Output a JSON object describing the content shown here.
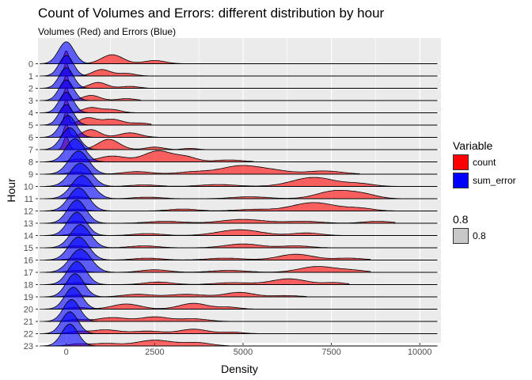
{
  "chart_data": {
    "type": "ridgeline",
    "title": "Count of Volumes and Errors: different distribution by hour",
    "subtitle": "Volumes (Red) and Errors (Blue)",
    "xlabel": "Density",
    "ylabel": "Hour",
    "xlim": [
      -800,
      10600
    ],
    "x_ticks": [
      0,
      2500,
      5000,
      7500,
      10000
    ],
    "x_tick_labels": [
      "0",
      "2500",
      "5000",
      "7500",
      "10000"
    ],
    "categories": [
      "0",
      "1",
      "2",
      "3",
      "4",
      "5",
      "6",
      "7",
      "8",
      "9",
      "10",
      "11",
      "12",
      "13",
      "14",
      "15",
      "16",
      "17",
      "18",
      "19",
      "20",
      "21",
      "22",
      "23"
    ],
    "colors": {
      "count": "#ff0000",
      "sum_error": "#0000ff",
      "background": "#ebebeb",
      "grid": "#ffffff"
    },
    "alpha": 0.6,
    "series": [
      {
        "name": "count",
        "color": "#ff0000",
        "ridges": [
          {
            "hour": "0",
            "peaks": [
              [
                0,
                70,
                1.0
              ],
              [
                1300,
                300,
                0.7
              ],
              [
                2500,
                300,
                0.25
              ]
            ],
            "end": 3400
          },
          {
            "hour": "1",
            "peaks": [
              [
                0,
                70,
                1.0
              ],
              [
                1000,
                250,
                0.5
              ],
              [
                1700,
                250,
                0.2
              ]
            ],
            "end": 2400
          },
          {
            "hour": "2",
            "peaks": [
              [
                0,
                70,
                1.0
              ],
              [
                900,
                250,
                0.45
              ],
              [
                1800,
                250,
                0.15
              ]
            ],
            "end": 2300
          },
          {
            "hour": "3",
            "peaks": [
              [
                0,
                70,
                1.0
              ],
              [
                700,
                250,
                0.4
              ],
              [
                1700,
                250,
                0.15
              ]
            ],
            "end": 2100
          },
          {
            "hour": "4",
            "peaks": [
              [
                0,
                70,
                1.0
              ],
              [
                700,
                250,
                0.4
              ],
              [
                1300,
                250,
                0.25
              ]
            ],
            "end": 2100
          },
          {
            "hour": "5",
            "peaks": [
              [
                0,
                70,
                1.0
              ],
              [
                600,
                250,
                0.55
              ],
              [
                1300,
                300,
                0.45
              ],
              [
                2100,
                250,
                0.15
              ]
            ],
            "end": 2400
          },
          {
            "hour": "6",
            "peaks": [
              [
                0,
                70,
                1.0
              ],
              [
                700,
                250,
                0.6
              ],
              [
                1800,
                300,
                0.35
              ]
            ],
            "end": 2600
          },
          {
            "hour": "7",
            "peaks": [
              [
                0,
                80,
                1.0
              ],
              [
                1200,
                300,
                0.8
              ],
              [
                2500,
                250,
                0.2
              ],
              [
                3500,
                200,
                0.1
              ]
            ],
            "end": 4000
          },
          {
            "hour": "8",
            "peaks": [
              [
                300,
                200,
                0.2
              ],
              [
                1300,
                400,
                0.45
              ],
              [
                2600,
                400,
                0.85
              ],
              [
                3400,
                300,
                0.35
              ],
              [
                4600,
                400,
                0.15
              ]
            ],
            "end": 5300
          },
          {
            "hour": "9",
            "peaks": [
              [
                300,
                250,
                0.15
              ],
              [
                2000,
                400,
                0.2
              ],
              [
                3700,
                500,
                0.2
              ],
              [
                4900,
                500,
                0.6
              ],
              [
                5800,
                500,
                0.3
              ],
              [
                7300,
                500,
                0.25
              ]
            ],
            "end": 8300
          },
          {
            "hour": "10",
            "peaks": [
              [
                300,
                250,
                0.15
              ],
              [
                2200,
                400,
                0.12
              ],
              [
                4300,
                500,
                0.15
              ],
              [
                7000,
                600,
                0.7
              ],
              [
                8300,
                400,
                0.2
              ]
            ],
            "end": 9600
          },
          {
            "hour": "11",
            "peaks": [
              [
                300,
                250,
                0.15
              ],
              [
                2300,
                400,
                0.12
              ],
              [
                5200,
                500,
                0.15
              ],
              [
                7600,
                500,
                0.6
              ],
              [
                8400,
                400,
                0.3
              ]
            ],
            "end": 10200
          },
          {
            "hour": "12",
            "peaks": [
              [
                300,
                250,
                0.15
              ],
              [
                3300,
                400,
                0.15
              ],
              [
                5300,
                500,
                0.12
              ],
              [
                7000,
                600,
                0.65
              ],
              [
                8300,
                400,
                0.2
              ]
            ],
            "end": 9900
          },
          {
            "hour": "13",
            "peaks": [
              [
                300,
                250,
                0.15
              ],
              [
                2800,
                500,
                0.15
              ],
              [
                5000,
                600,
                0.3
              ],
              [
                6700,
                500,
                0.15
              ],
              [
                8800,
                400,
                0.15
              ]
            ],
            "end": 9300
          },
          {
            "hour": "14",
            "peaks": [
              [
                300,
                250,
                0.15
              ],
              [
                2300,
                400,
                0.15
              ],
              [
                4900,
                600,
                0.45
              ],
              [
                6800,
                400,
                0.2
              ]
            ],
            "end": 8300
          },
          {
            "hour": "15",
            "peaks": [
              [
                300,
                250,
                0.15
              ],
              [
                2200,
                400,
                0.15
              ],
              [
                5000,
                500,
                0.3
              ],
              [
                6500,
                400,
                0.15
              ]
            ],
            "end": 7500
          },
          {
            "hour": "16",
            "peaks": [
              [
                300,
                250,
                0.15
              ],
              [
                2300,
                400,
                0.15
              ],
              [
                4500,
                500,
                0.15
              ],
              [
                6500,
                500,
                0.45
              ],
              [
                8000,
                400,
                0.15
              ]
            ],
            "end": 8600
          },
          {
            "hour": "17",
            "peaks": [
              [
                300,
                250,
                0.15
              ],
              [
                2500,
                400,
                0.2
              ],
              [
                4600,
                500,
                0.15
              ],
              [
                7100,
                500,
                0.45
              ],
              [
                8100,
                400,
                0.15
              ]
            ],
            "end": 8600
          },
          {
            "hour": "18",
            "peaks": [
              [
                300,
                250,
                0.15
              ],
              [
                2600,
                400,
                0.2
              ],
              [
                4700,
                500,
                0.15
              ],
              [
                6300,
                500,
                0.45
              ],
              [
                7600,
                300,
                0.15
              ]
            ],
            "end": 8000
          },
          {
            "hour": "19",
            "peaks": [
              [
                300,
                250,
                0.15
              ],
              [
                2000,
                400,
                0.2
              ],
              [
                3400,
                500,
                0.2
              ],
              [
                4900,
                400,
                0.35
              ],
              [
                6200,
                400,
                0.1
              ]
            ],
            "end": 6800
          },
          {
            "hour": "20",
            "peaks": [
              [
                300,
                250,
                0.15
              ],
              [
                1700,
                400,
                0.4
              ],
              [
                3600,
                400,
                0.45
              ],
              [
                4600,
                300,
                0.15
              ]
            ],
            "end": 5300
          },
          {
            "hour": "21",
            "peaks": [
              [
                300,
                250,
                0.15
              ],
              [
                1300,
                400,
                0.3
              ],
              [
                2500,
                400,
                0.35
              ],
              [
                3600,
                400,
                0.2
              ]
            ],
            "end": 4800
          },
          {
            "hour": "22",
            "peaks": [
              [
                300,
                250,
                0.15
              ],
              [
                1100,
                400,
                0.3
              ],
              [
                2300,
                400,
                0.2
              ],
              [
                3600,
                400,
                0.35
              ],
              [
                4700,
                300,
                0.12
              ]
            ],
            "end": 5600
          },
          {
            "hour": "23",
            "peaks": [
              [
                300,
                250,
                0.15
              ],
              [
                1100,
                400,
                0.2
              ],
              [
                2500,
                500,
                0.45
              ],
              [
                3700,
                400,
                0.25
              ]
            ],
            "end": 4600
          }
        ]
      },
      {
        "name": "sum_error",
        "color": "#0000ff",
        "ridges": [
          {
            "hour": "0",
            "peak": 0,
            "sd": 220,
            "height": 1.7
          },
          {
            "hour": "1",
            "peak": 0,
            "sd": 200,
            "height": 1.6
          },
          {
            "hour": "2",
            "peak": 0,
            "sd": 200,
            "height": 1.6
          },
          {
            "hour": "3",
            "peak": 0,
            "sd": 200,
            "height": 1.6
          },
          {
            "hour": "4",
            "peak": 0,
            "sd": 200,
            "height": 1.6
          },
          {
            "hour": "5",
            "peak": 0,
            "sd": 200,
            "height": 1.6
          },
          {
            "hour": "6",
            "peak": 50,
            "sd": 220,
            "height": 1.7
          },
          {
            "hour": "7",
            "peak": 100,
            "sd": 240,
            "height": 1.7
          },
          {
            "hour": "8",
            "peak": 250,
            "sd": 260,
            "height": 1.8
          },
          {
            "hour": "9",
            "peak": 350,
            "sd": 280,
            "height": 1.8
          },
          {
            "hour": "10",
            "peak": 400,
            "sd": 300,
            "height": 1.8
          },
          {
            "hour": "11",
            "peak": 450,
            "sd": 300,
            "height": 1.8
          },
          {
            "hour": "12",
            "peak": 350,
            "sd": 280,
            "height": 1.8
          },
          {
            "hour": "13",
            "peak": 300,
            "sd": 260,
            "height": 1.8
          },
          {
            "hour": "14",
            "peak": 300,
            "sd": 260,
            "height": 1.8
          },
          {
            "hour": "15",
            "peak": 400,
            "sd": 280,
            "height": 1.8
          },
          {
            "hour": "16",
            "peak": 350,
            "sd": 280,
            "height": 1.8
          },
          {
            "hour": "17",
            "peak": 400,
            "sd": 300,
            "height": 1.8
          },
          {
            "hour": "18",
            "peak": 300,
            "sd": 260,
            "height": 1.8
          },
          {
            "hour": "19",
            "peak": 250,
            "sd": 250,
            "height": 1.8
          },
          {
            "hour": "20",
            "peak": 200,
            "sd": 240,
            "height": 1.7
          },
          {
            "hour": "21",
            "peak": 150,
            "sd": 230,
            "height": 1.7
          },
          {
            "hour": "22",
            "peak": 100,
            "sd": 230,
            "height": 1.7
          },
          {
            "hour": "23",
            "peak": 100,
            "sd": 230,
            "height": 1.7
          }
        ]
      }
    ],
    "legend": {
      "fill_title": "Variable",
      "fill_items": [
        {
          "label": "count",
          "color": "#ff0000"
        },
        {
          "label": "sum_error",
          "color": "#0000ff"
        }
      ],
      "alpha_title": "0.8",
      "alpha_items": [
        {
          "label": "0.8",
          "color": "#c8c8c8"
        }
      ],
      "position": "right"
    }
  }
}
